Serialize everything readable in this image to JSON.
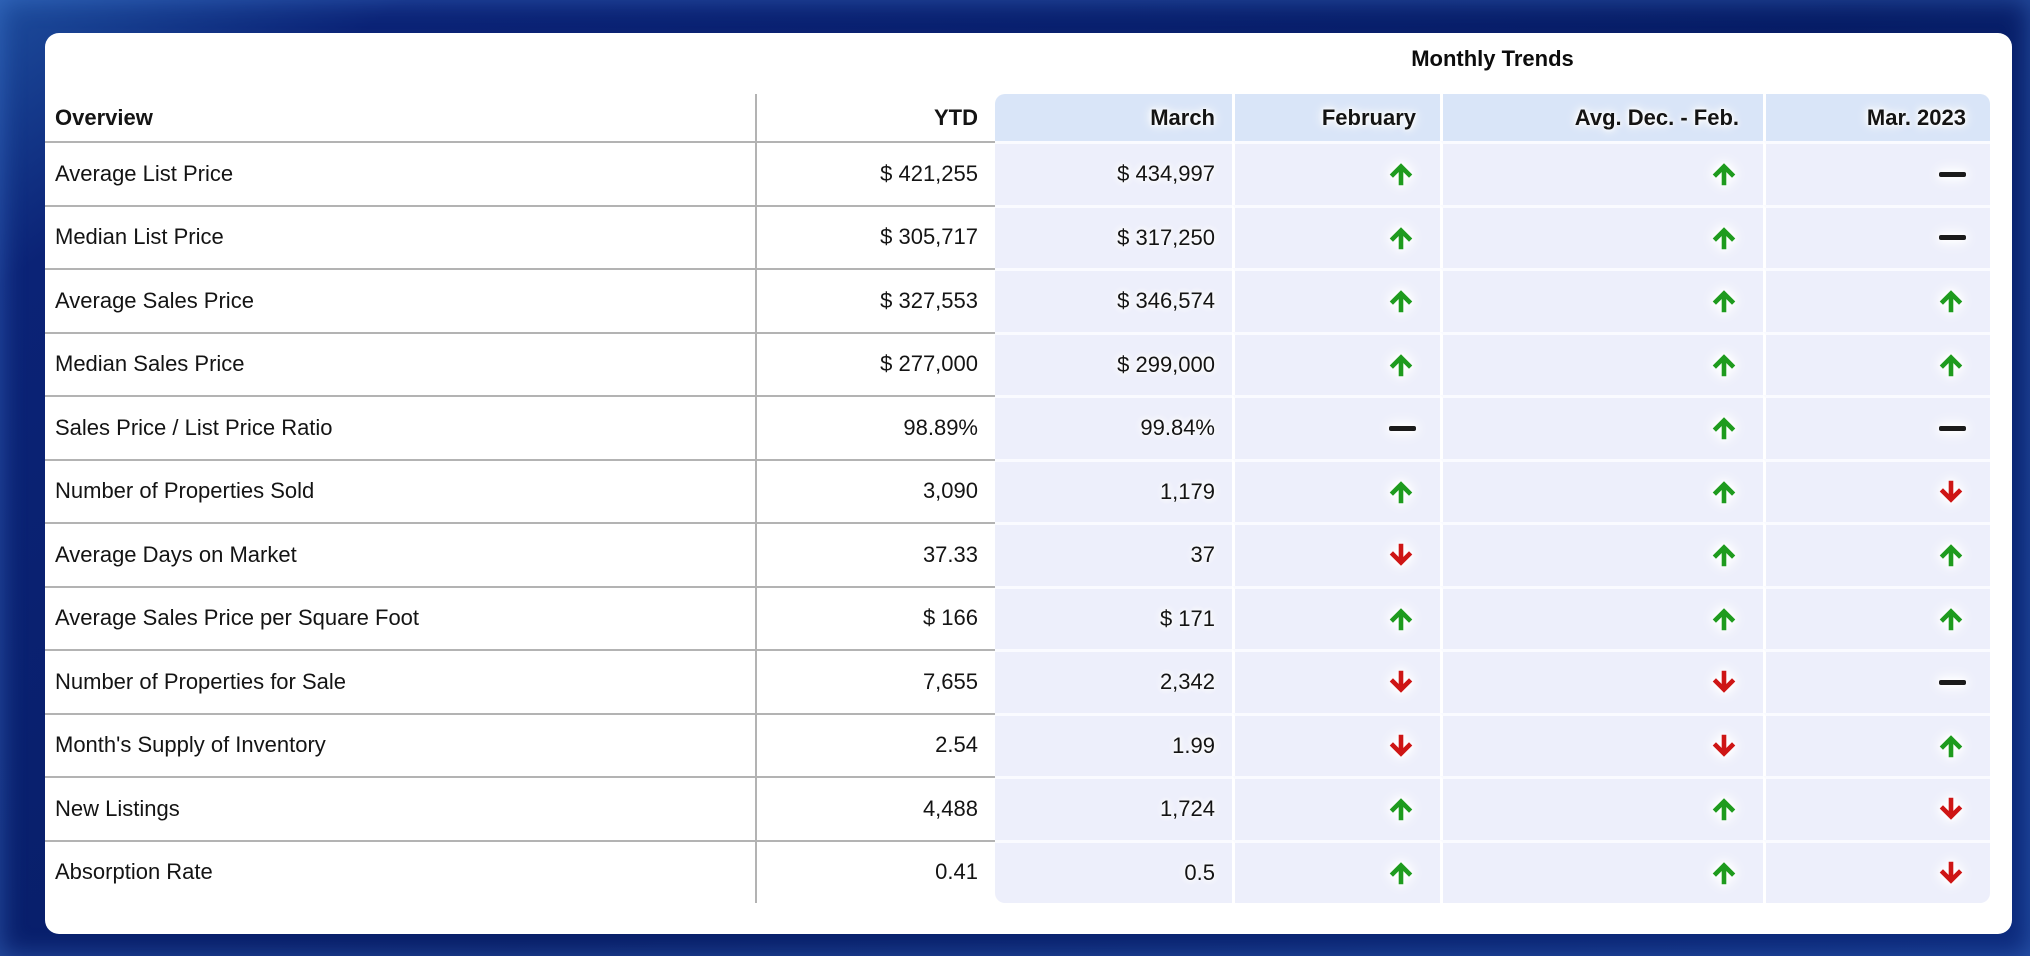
{
  "chart_data": {
    "type": "table",
    "title": "Monthly Trends",
    "columns": {
      "overview": "Overview",
      "ytd": "YTD",
      "march": "March",
      "february": "February",
      "avg_dec_feb": "Avg. Dec. - Feb.",
      "mar_2023": "Mar. 2023"
    },
    "trend_legend": {
      "up": "green up arrow (increase)",
      "down": "red down arrow (decrease)",
      "flat": "black dash (no change)"
    },
    "trend_colors": {
      "up": "#1e9b1e",
      "down": "#ce1515",
      "flat": "#1b1b1b"
    },
    "rows": [
      {
        "label": "Average List Price",
        "ytd": "$ 421,255",
        "march": "$ 434,997",
        "february": "up",
        "avg_dec_feb": "up",
        "mar_2023": "flat"
      },
      {
        "label": "Median List Price",
        "ytd": "$ 305,717",
        "march": "$ 317,250",
        "february": "up",
        "avg_dec_feb": "up",
        "mar_2023": "flat"
      },
      {
        "label": "Average Sales Price",
        "ytd": "$ 327,553",
        "march": "$ 346,574",
        "february": "up",
        "avg_dec_feb": "up",
        "mar_2023": "up"
      },
      {
        "label": "Median Sales Price",
        "ytd": "$ 277,000",
        "march": "$ 299,000",
        "february": "up",
        "avg_dec_feb": "up",
        "mar_2023": "up"
      },
      {
        "label": "Sales Price / List Price Ratio",
        "ytd": "98.89%",
        "march": "99.84%",
        "february": "flat",
        "avg_dec_feb": "up",
        "mar_2023": "flat"
      },
      {
        "label": "Number of Properties Sold",
        "ytd": "3,090",
        "march": "1,179",
        "february": "up",
        "avg_dec_feb": "up",
        "mar_2023": "down"
      },
      {
        "label": "Average Days on Market",
        "ytd": "37.33",
        "march": "37",
        "february": "down",
        "avg_dec_feb": "up",
        "mar_2023": "up"
      },
      {
        "label": "Average Sales Price per Square Foot",
        "ytd": "$ 166",
        "march": "$ 171",
        "february": "up",
        "avg_dec_feb": "up",
        "mar_2023": "up"
      },
      {
        "label": "Number of Properties for Sale",
        "ytd": "7,655",
        "march": "2,342",
        "february": "down",
        "avg_dec_feb": "down",
        "mar_2023": "flat"
      },
      {
        "label": "Month's Supply of Inventory",
        "ytd": "2.54",
        "march": "1.99",
        "february": "down",
        "avg_dec_feb": "down",
        "mar_2023": "up"
      },
      {
        "label": "New Listings",
        "ytd": "4,488",
        "march": "1,724",
        "february": "up",
        "avg_dec_feb": "up",
        "mar_2023": "down"
      },
      {
        "label": "Absorption Rate",
        "ytd": "0.41",
        "march": "0.5",
        "february": "up",
        "avg_dec_feb": "up",
        "mar_2023": "down"
      }
    ],
    "layout": {
      "grid": "gray gridlines on white half, white separators on lavender trend panel",
      "legend_position": "none"
    },
    "colors": {
      "frame": "#0b2376",
      "panel_header": "#d9e5f8",
      "panel_row": "#edeffb",
      "gridline": "#b3b3b3"
    }
  }
}
